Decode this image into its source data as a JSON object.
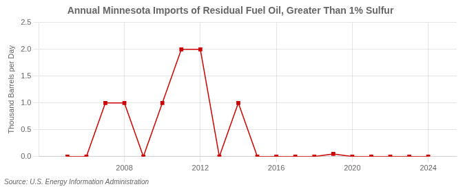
{
  "chart_data": {
    "type": "line",
    "title": "Annual Minnesota Imports of Residual Fuel Oil, Greater Than 1% Sulfur",
    "ylabel": "Thousand Barrels per Day",
    "source": "Source: U.S. Energy Information Administration",
    "x": [
      2005,
      2006,
      2007,
      2008,
      2009,
      2010,
      2011,
      2012,
      2013,
      2014,
      2015,
      2016,
      2017,
      2018,
      2019,
      2020,
      2021,
      2022,
      2023,
      2024
    ],
    "values": [
      0.0,
      0.0,
      1.0,
      1.0,
      0.0,
      1.0,
      2.0,
      2.0,
      0.0,
      1.0,
      0.0,
      0.0,
      0.0,
      0.0,
      0.05,
      0.0,
      0.0,
      0.0,
      0.0,
      0.0
    ],
    "color": "#cc0000",
    "marker": "square",
    "xlim": [
      2003.5,
      2025.5
    ],
    "xticks": [
      2008,
      2012,
      2016,
      2020,
      2024
    ],
    "ylim": [
      0,
      2.5
    ],
    "yticks": [
      {
        "value": 0.0,
        "label": "0.0"
      },
      0.5,
      {
        "value": 1.0,
        "label": "1.0"
      },
      1.5,
      {
        "value": 2.0,
        "label": "2.0"
      },
      2.5
    ],
    "grid": true
  }
}
